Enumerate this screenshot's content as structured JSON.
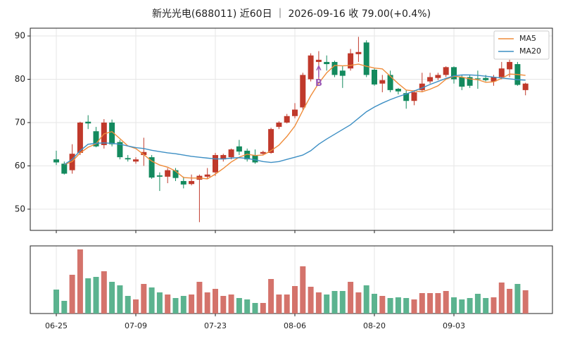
{
  "chart_data": {
    "type": "candlestick",
    "title": "新光光电(688011) 近60日 ｜ 2026-09-16 收 79.00(+0.4%)",
    "categories": [
      "06-25",
      null,
      null,
      null,
      null,
      null,
      null,
      null,
      null,
      null,
      "07-09",
      null,
      null,
      null,
      null,
      null,
      null,
      null,
      null,
      null,
      "07-23",
      null,
      null,
      null,
      null,
      null,
      null,
      null,
      null,
      null,
      "08-06",
      null,
      null,
      null,
      null,
      null,
      null,
      null,
      null,
      null,
      "08-20",
      null,
      null,
      null,
      null,
      null,
      null,
      null,
      null,
      null,
      "09-03",
      null,
      null,
      null,
      null,
      null,
      null,
      null,
      null,
      null
    ],
    "open": [
      61.5,
      60.5,
      59,
      63,
      70.2,
      68,
      64.8,
      70,
      65.5,
      61.8,
      61,
      62.5,
      62,
      57.8,
      57.5,
      59,
      56.5,
      55.8,
      56.8,
      57.5,
      58.5,
      61.5,
      62,
      64.5,
      63.5,
      62.5,
      62.8,
      63,
      69,
      70,
      71.5,
      73.5,
      80,
      84,
      84,
      84,
      82,
      82.5,
      85.8,
      88.5,
      82.2,
      79,
      81,
      77.8,
      76.8,
      75,
      77.5,
      79.5,
      80.3,
      81,
      82.8,
      80.5,
      80.5,
      80.2,
      80.3,
      79.5,
      80.5,
      82.3,
      83.5,
      77.5
    ],
    "high": [
      63.5,
      61,
      65,
      70.2,
      71.7,
      69,
      70.8,
      70.7,
      66,
      62.5,
      62,
      66.5,
      62.5,
      58.5,
      59.5,
      59.5,
      57.5,
      58,
      58,
      59.5,
      63,
      62.8,
      64,
      66,
      64,
      63.8,
      63.5,
      68.8,
      70.3,
      72,
      74.5,
      81.5,
      86,
      86.5,
      85.5,
      84.3,
      83,
      87,
      89.8,
      89,
      82.5,
      81,
      82,
      78,
      77.5,
      77.5,
      81.5,
      81.5,
      81.5,
      83,
      83,
      81,
      81,
      82,
      81,
      81,
      84,
      84.5,
      84,
      79.2
    ],
    "low": [
      60.2,
      58,
      58.2,
      62.5,
      68.5,
      64.3,
      64,
      64.5,
      61.5,
      61,
      60.5,
      60,
      57,
      54.2,
      56,
      56.5,
      54.8,
      55.5,
      47,
      57,
      57.7,
      61,
      61.5,
      62.5,
      61,
      60.5,
      62.5,
      62.8,
      68.5,
      69.8,
      71,
      73,
      79.5,
      80,
      82,
      80.5,
      78,
      82,
      84,
      80.5,
      78.5,
      77,
      77,
      76.5,
      73.2,
      74,
      77,
      79,
      79.8,
      80.5,
      79,
      77.5,
      78,
      77.8,
      79.5,
      78.5,
      80,
      80.5,
      78.5,
      76.3
    ],
    "close": [
      60.8,
      58.2,
      62.8,
      70,
      69.8,
      64.5,
      70,
      65,
      62,
      61.5,
      61.5,
      63.2,
      57.3,
      57.5,
      59,
      57.2,
      55.7,
      56.5,
      57.7,
      58,
      62.5,
      62.5,
      63.8,
      63.3,
      61.5,
      60.8,
      63.2,
      68.5,
      70,
      71.5,
      73,
      81,
      85.5,
      84.5,
      83.5,
      81,
      80.8,
      86,
      86.3,
      81,
      78.8,
      79.8,
      77.5,
      77.2,
      75,
      77,
      79,
      80.5,
      81,
      82.8,
      80,
      78.3,
      78.5,
      80,
      79.8,
      80.5,
      82.5,
      84,
      78.7,
      79
    ],
    "up_color": "#c0392b",
    "down_color": "#138a5e",
    "volume_up_color": "#d4736b",
    "volume_down_color": "#5bb38f",
    "series": [
      {
        "name": "MA5",
        "color": "#ef8c3a",
        "values": [
          null,
          60.3,
          61,
          63,
          64.3,
          65.1,
          67.4,
          67.9,
          66.3,
          64.6,
          64,
          62.6,
          61.1,
          60.2,
          59.7,
          58.8,
          57.3,
          57.2,
          57.2,
          57,
          58.1,
          59.4,
          60.9,
          62,
          62.7,
          62.4,
          62.5,
          63.5,
          64.8,
          66.8,
          69.2,
          72.8,
          76.2,
          79.1,
          81.5,
          83.2,
          83.1,
          83.2,
          83.5,
          83,
          82.6,
          82.4,
          80.7,
          79,
          77.5,
          77.3,
          77.1,
          77.7,
          78.5,
          80,
          80.7,
          80.5,
          80.1,
          79.9,
          79.3,
          79.4,
          80.2,
          81.2,
          81.1,
          80.9
        ]
      },
      {
        "name": "MA20",
        "color": "#3d8fc4",
        "values": [
          null,
          60.3,
          61.5,
          63.5,
          65,
          65.2,
          65.3,
          65.2,
          65,
          64.6,
          64.2,
          64,
          63.6,
          63.3,
          63,
          62.8,
          62.5,
          62.2,
          62,
          61.8,
          61.6,
          61.6,
          61.8,
          61.9,
          61.7,
          61.4,
          61,
          60.8,
          61,
          61.5,
          62,
          62.5,
          63.5,
          65,
          66.2,
          67.3,
          68.4,
          69.5,
          71,
          72.5,
          73.6,
          74.5,
          75.3,
          76,
          76.6,
          77.3,
          78,
          78.8,
          79.5,
          80.2,
          80.8,
          81,
          81,
          80.9,
          80.7,
          80.5,
          80.3,
          80.1,
          79.9,
          79.8
        ]
      }
    ],
    "volume": [
      34,
      18,
      55,
      91,
      50,
      52,
      60,
      45,
      40,
      25,
      20,
      42,
      37,
      30,
      27,
      22,
      25,
      27,
      45,
      30,
      35,
      25,
      27,
      22,
      20,
      15,
      15,
      49,
      27,
      27,
      39,
      67,
      38,
      30,
      27,
      32,
      32,
      45,
      30,
      40,
      28,
      25,
      22,
      23,
      22,
      20,
      29,
      29,
      29,
      32,
      23,
      20,
      22,
      28,
      22,
      23,
      44,
      35,
      42,
      33
    ],
    "volume_ylim": [
      0,
      96
    ],
    "ylim": [
      45.1,
      91.8
    ],
    "yticks": [
      50,
      60,
      70,
      80,
      90
    ],
    "grid": true,
    "legend": "upper right",
    "annotations": [
      {
        "text": "B",
        "index": 33,
        "value": 79,
        "color": "#9b59b6"
      }
    ]
  }
}
